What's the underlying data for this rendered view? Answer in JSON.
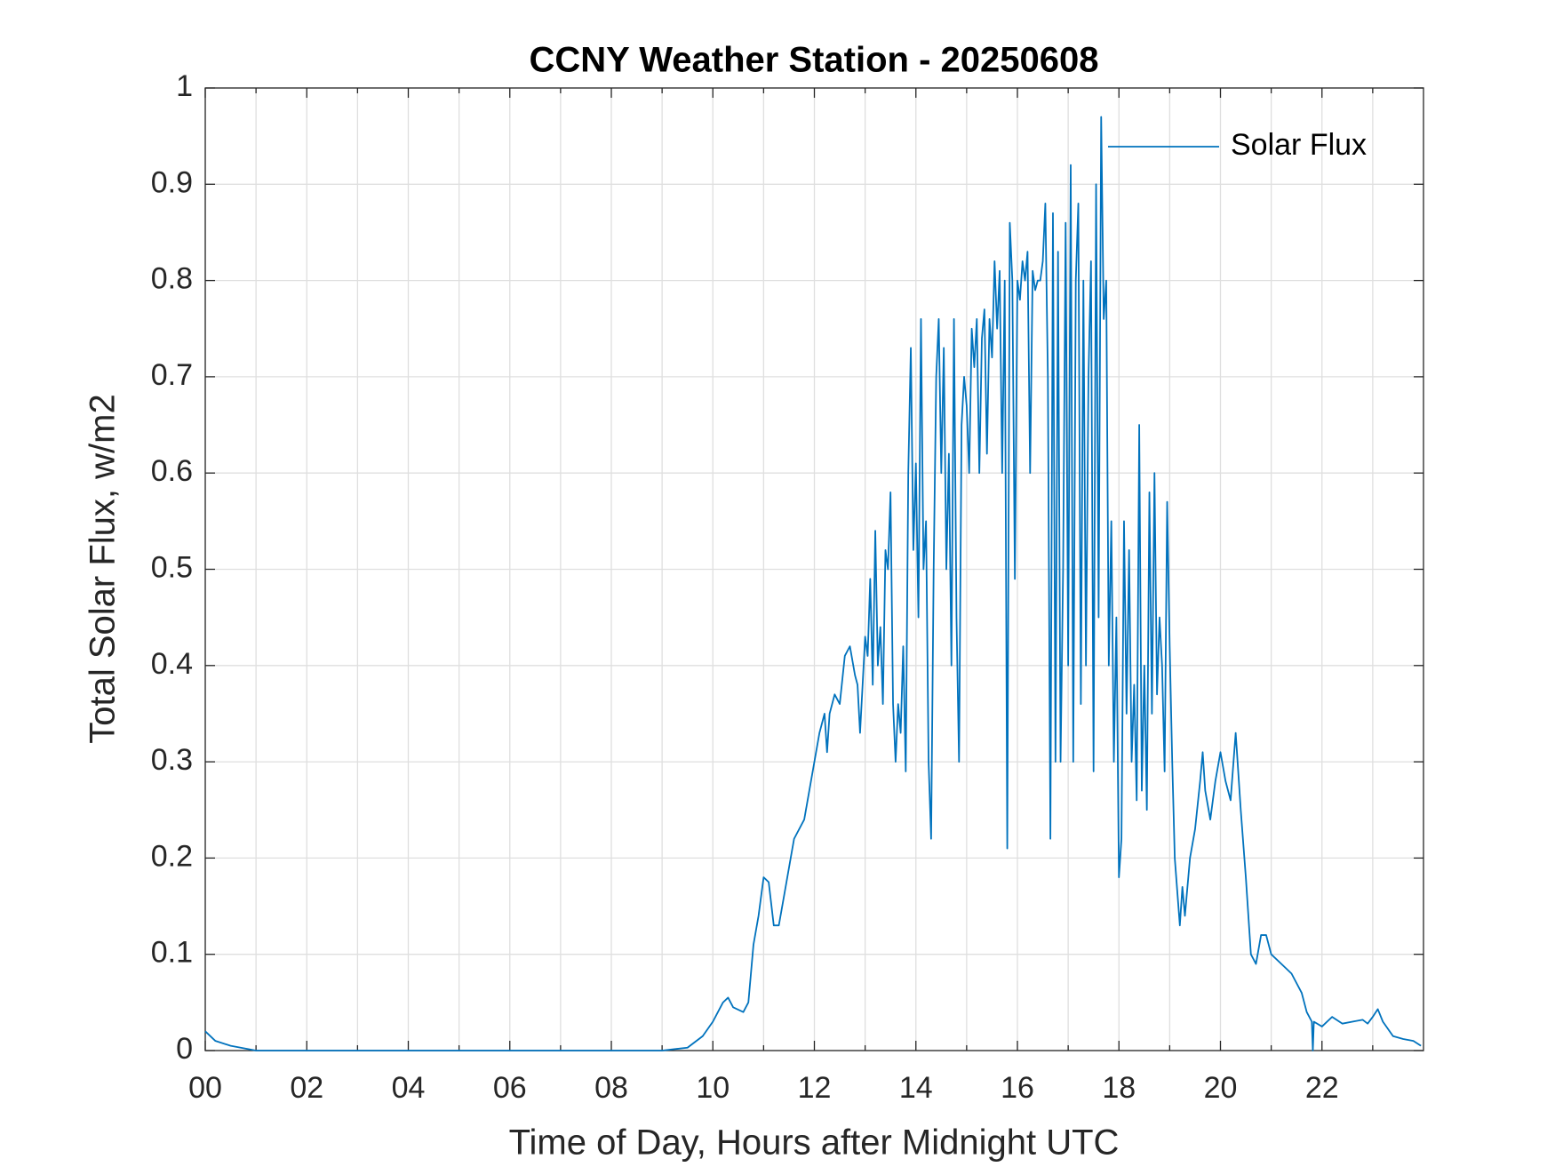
{
  "chart_data": {
    "type": "line",
    "title": "CCNY Weather Station - 20250608",
    "xlabel": "Time of Day, Hours after Midnight UTC",
    "ylabel": "Total Solar Flux, w/m2",
    "xlim": [
      0,
      24
    ],
    "ylim": [
      0,
      1
    ],
    "xticks": [
      {
        "value": 0,
        "label": "00"
      },
      {
        "value": 2,
        "label": "02"
      },
      {
        "value": 4,
        "label": "04"
      },
      {
        "value": 6,
        "label": "06"
      },
      {
        "value": 8,
        "label": "08"
      },
      {
        "value": 10,
        "label": "10"
      },
      {
        "value": 12,
        "label": "12"
      },
      {
        "value": 14,
        "label": "14"
      },
      {
        "value": 16,
        "label": "16"
      },
      {
        "value": 18,
        "label": "18"
      },
      {
        "value": 20,
        "label": "20"
      },
      {
        "value": 22,
        "label": "22"
      }
    ],
    "xminorticks": [
      1,
      3,
      5,
      7,
      9,
      11,
      13,
      15,
      17,
      19,
      21,
      23
    ],
    "yticks": [
      0,
      0.1,
      0.2,
      0.3,
      0.4,
      0.5,
      0.6,
      0.7,
      0.8,
      0.9,
      1
    ],
    "grid": true,
    "legend": "northeast",
    "x": [
      0,
      0.2,
      0.5,
      1,
      9,
      9.5,
      9.8,
      10,
      10.2,
      10.3,
      10.4,
      10.6,
      10.7,
      10.8,
      10.9,
      11,
      11.1,
      11.2,
      11.3,
      11.4,
      11.5,
      11.6,
      11.8,
      12,
      12.1,
      12.2,
      12.25,
      12.3,
      12.4,
      12.5,
      12.6,
      12.7,
      12.8,
      12.85,
      12.9,
      13,
      13.05,
      13.1,
      13.15,
      13.2,
      13.25,
      13.3,
      13.35,
      13.4,
      13.45,
      13.5,
      13.55,
      13.6,
      13.65,
      13.7,
      13.75,
      13.8,
      13.85,
      13.9,
      13.95,
      14,
      14.05,
      14.1,
      14.15,
      14.2,
      14.25,
      14.3,
      14.35,
      14.4,
      14.45,
      14.5,
      14.55,
      14.6,
      14.65,
      14.7,
      14.75,
      14.8,
      14.85,
      14.9,
      14.95,
      15,
      15.05,
      15.1,
      15.15,
      15.2,
      15.25,
      15.3,
      15.35,
      15.4,
      15.45,
      15.5,
      15.55,
      15.6,
      15.65,
      15.7,
      15.75,
      15.8,
      15.85,
      15.9,
      15.95,
      16,
      16.05,
      16.1,
      16.15,
      16.2,
      16.25,
      16.3,
      16.35,
      16.4,
      16.45,
      16.5,
      16.55,
      16.6,
      16.65,
      16.7,
      16.75,
      16.8,
      16.85,
      16.9,
      16.95,
      17,
      17.05,
      17.1,
      17.15,
      17.2,
      17.25,
      17.3,
      17.35,
      17.4,
      17.45,
      17.5,
      17.55,
      17.6,
      17.65,
      17.7,
      17.75,
      17.8,
      17.85,
      17.9,
      17.95,
      18,
      18.05,
      18.1,
      18.15,
      18.2,
      18.25,
      18.3,
      18.35,
      18.4,
      18.45,
      18.5,
      18.55,
      18.6,
      18.65,
      18.7,
      18.75,
      18.8,
      18.85,
      18.9,
      18.95,
      19,
      19.05,
      19.1,
      19.2,
      19.25,
      19.3,
      19.4,
      19.5,
      19.6,
      19.65,
      19.7,
      19.8,
      19.9,
      20,
      20.1,
      20.2,
      20.3,
      20.4,
      20.5,
      20.6,
      20.7,
      20.8,
      20.9,
      21,
      21.2,
      21.4,
      21.6,
      21.7,
      21.8,
      21.82,
      21.84,
      22,
      22.2,
      22.4,
      22.6,
      22.8,
      22.9,
      23,
      23.1,
      23.2,
      23.4,
      23.6,
      23.8,
      23.95
    ],
    "series": [
      {
        "name": "Solar Flux",
        "color": "#0072bd",
        "values": [
          0.02,
          0.01,
          0.005,
          0,
          0,
          0.003,
          0.015,
          0.03,
          0.05,
          0.055,
          0.045,
          0.04,
          0.05,
          0.11,
          0.14,
          0.18,
          0.175,
          0.13,
          0.13,
          0.16,
          0.19,
          0.22,
          0.24,
          0.3,
          0.33,
          0.35,
          0.31,
          0.35,
          0.37,
          0.36,
          0.41,
          0.42,
          0.39,
          0.38,
          0.33,
          0.43,
          0.41,
          0.49,
          0.38,
          0.54,
          0.4,
          0.44,
          0.36,
          0.52,
          0.5,
          0.58,
          0.36,
          0.3,
          0.36,
          0.33,
          0.42,
          0.29,
          0.6,
          0.73,
          0.52,
          0.61,
          0.45,
          0.76,
          0.5,
          0.55,
          0.3,
          0.22,
          0.5,
          0.7,
          0.76,
          0.6,
          0.73,
          0.5,
          0.62,
          0.4,
          0.76,
          0.45,
          0.3,
          0.65,
          0.7,
          0.67,
          0.6,
          0.75,
          0.71,
          0.76,
          0.6,
          0.74,
          0.77,
          0.62,
          0.76,
          0.72,
          0.82,
          0.75,
          0.81,
          0.6,
          0.8,
          0.21,
          0.86,
          0.8,
          0.49,
          0.8,
          0.78,
          0.82,
          0.8,
          0.83,
          0.6,
          0.81,
          0.79,
          0.8,
          0.8,
          0.82,
          0.88,
          0.7,
          0.22,
          0.87,
          0.3,
          0.83,
          0.3,
          0.5,
          0.86,
          0.4,
          0.92,
          0.3,
          0.8,
          0.88,
          0.36,
          0.8,
          0.4,
          0.7,
          0.82,
          0.29,
          0.9,
          0.45,
          0.97,
          0.76,
          0.8,
          0.4,
          0.55,
          0.3,
          0.45,
          0.18,
          0.22,
          0.55,
          0.35,
          0.52,
          0.3,
          0.38,
          0.26,
          0.65,
          0.27,
          0.4,
          0.25,
          0.58,
          0.35,
          0.6,
          0.37,
          0.45,
          0.4,
          0.29,
          0.57,
          0.42,
          0.3,
          0.2,
          0.13,
          0.17,
          0.14,
          0.2,
          0.23,
          0.28,
          0.31,
          0.27,
          0.24,
          0.28,
          0.31,
          0.28,
          0.26,
          0.33,
          0.25,
          0.18,
          0.1,
          0.09,
          0.12,
          0.12,
          0.1,
          0.09,
          0.08,
          0.06,
          0.04,
          0.03,
          0,
          0.03,
          0.025,
          0.035,
          0.028,
          0.03,
          0.032,
          0.028,
          0.035,
          0.043,
          0.03,
          0.015,
          0.012,
          0.01,
          0.005
        ]
      }
    ]
  }
}
